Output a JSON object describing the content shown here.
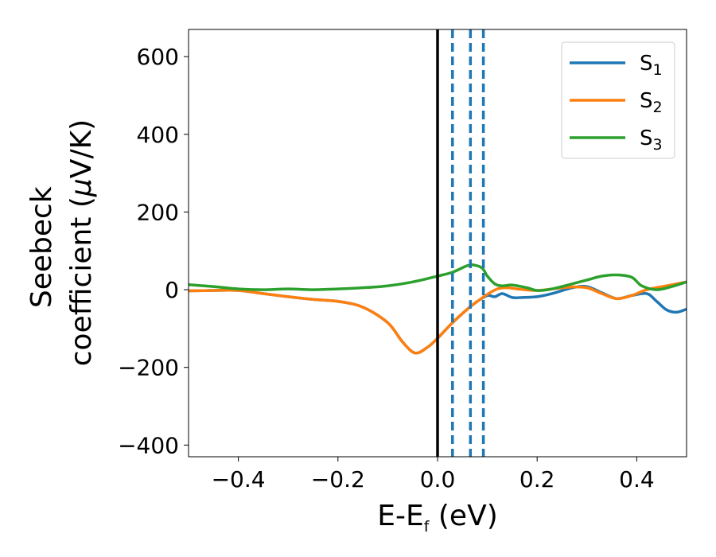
{
  "chart_data": {
    "type": "line",
    "xlabel": "E-E",
    "xlabel_sub": "f",
    "xlabel_unit": " (eV)",
    "ylabel_line1": "Seebeck",
    "ylabel_line2": "coefficient  (",
    "ylabel_mu": "μ",
    "ylabel_unit": "V/K)",
    "xlim": [
      -0.5,
      0.5
    ],
    "ylim": [
      -430,
      670
    ],
    "xticks": [
      -0.4,
      -0.2,
      0.0,
      0.2,
      0.4
    ],
    "xtick_labels": [
      "−0.4",
      "−0.2",
      "0.0",
      "0.2",
      "0.4"
    ],
    "yticks": [
      -400,
      -200,
      0,
      200,
      400,
      600
    ],
    "ytick_labels": [
      "−400",
      "−200",
      "0",
      "200",
      "400",
      "600"
    ],
    "grid": false,
    "legend_position": "top-right",
    "vertical_lines": [
      {
        "x": 0.0,
        "style": "solid",
        "color": "#000000"
      },
      {
        "x": 0.03,
        "style": "dashed",
        "color": "#1f77b4"
      },
      {
        "x": 0.066,
        "style": "dashed",
        "color": "#1f77b4"
      },
      {
        "x": 0.092,
        "style": "dashed",
        "color": "#1f77b4"
      }
    ],
    "series": [
      {
        "name": "S",
        "sub": "1",
        "color": "#1f77b4",
        "x": [
          -0.5,
          -0.45,
          -0.4,
          -0.35,
          -0.3,
          -0.25,
          -0.2,
          -0.15,
          -0.1,
          -0.07,
          -0.045,
          -0.02,
          0.0,
          0.03,
          0.06,
          0.08,
          0.1,
          0.115,
          0.13,
          0.15,
          0.17,
          0.2,
          0.23,
          0.27,
          0.3,
          0.33,
          0.36,
          0.39,
          0.42,
          0.44,
          0.46,
          0.48,
          0.5
        ],
        "y": [
          -3,
          -2,
          -2,
          -10,
          -18,
          -25,
          -30,
          -45,
          -85,
          -135,
          -163,
          -148,
          -125,
          -85,
          -50,
          -30,
          -15,
          -18,
          -10,
          -20,
          -20,
          -18,
          -10,
          5,
          8,
          -8,
          -23,
          -15,
          -10,
          -30,
          -52,
          -58,
          -50
        ]
      },
      {
        "name": "S",
        "sub": "2",
        "color": "#ff7f0e",
        "x": [
          -0.5,
          -0.45,
          -0.4,
          -0.35,
          -0.3,
          -0.25,
          -0.2,
          -0.15,
          -0.1,
          -0.07,
          -0.045,
          -0.02,
          0.0,
          0.03,
          0.06,
          0.08,
          0.1,
          0.12,
          0.14,
          0.16,
          0.2,
          0.23,
          0.27,
          0.3,
          0.33,
          0.36,
          0.39,
          0.42,
          0.46,
          0.5
        ],
        "y": [
          -3,
          -2,
          -2,
          -10,
          -18,
          -25,
          -30,
          -45,
          -85,
          -135,
          -163,
          -148,
          -125,
          -85,
          -50,
          -30,
          -12,
          2,
          5,
          2,
          -2,
          2,
          7,
          5,
          -10,
          -23,
          -15,
          0,
          10,
          20
        ]
      },
      {
        "name": "S",
        "sub": "3",
        "color": "#2ca02c",
        "x": [
          -0.5,
          -0.45,
          -0.4,
          -0.35,
          -0.3,
          -0.25,
          -0.2,
          -0.15,
          -0.1,
          -0.05,
          0.0,
          0.03,
          0.06,
          0.075,
          0.09,
          0.1,
          0.115,
          0.13,
          0.15,
          0.18,
          0.2,
          0.23,
          0.27,
          0.3,
          0.33,
          0.36,
          0.39,
          0.41,
          0.44,
          0.47,
          0.5
        ],
        "y": [
          13,
          8,
          2,
          0,
          2,
          0,
          2,
          5,
          10,
          20,
          35,
          45,
          62,
          63,
          55,
          35,
          15,
          10,
          12,
          5,
          -2,
          2,
          15,
          25,
          35,
          38,
          32,
          10,
          0,
          8,
          20
        ]
      }
    ]
  }
}
